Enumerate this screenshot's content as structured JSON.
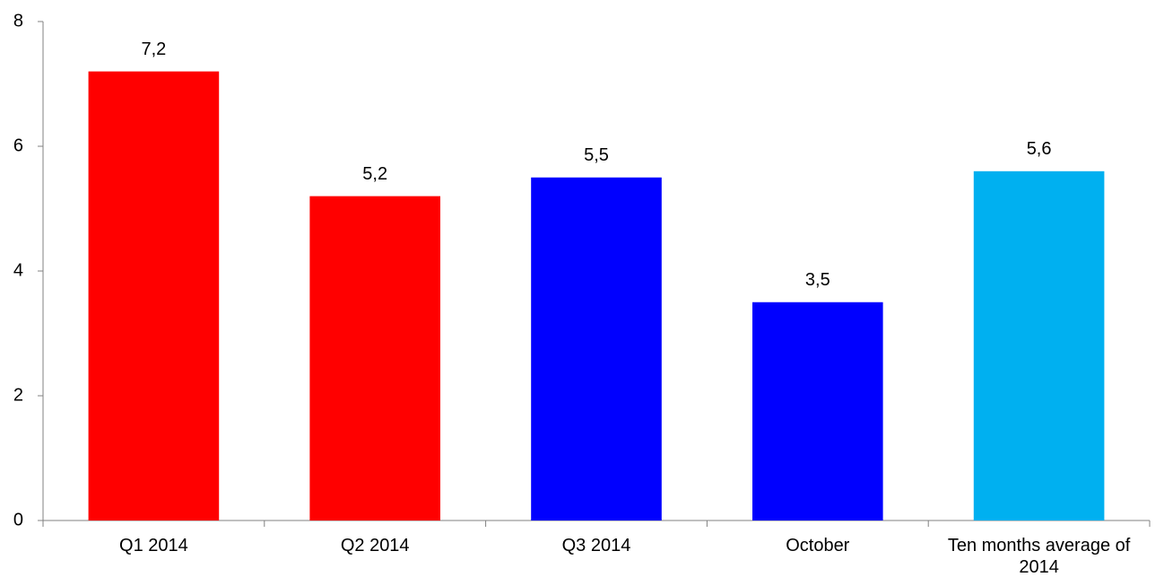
{
  "chart_data": {
    "type": "bar",
    "categories": [
      "Q1 2014",
      "Q2 2014",
      "Q3 2014",
      "October",
      "Ten months average of 2014"
    ],
    "values": [
      7.2,
      5.2,
      5.5,
      3.5,
      5.6
    ],
    "value_labels": [
      "7,2",
      "5,2",
      "5,5",
      "3,5",
      "5,6"
    ],
    "colors": [
      "#ff0000",
      "#ff0000",
      "#0000ff",
      "#0000ff",
      "#00b0f0"
    ],
    "ylim": [
      0,
      8
    ],
    "yticks": [
      0,
      2,
      4,
      6,
      8
    ],
    "grid": false
  }
}
